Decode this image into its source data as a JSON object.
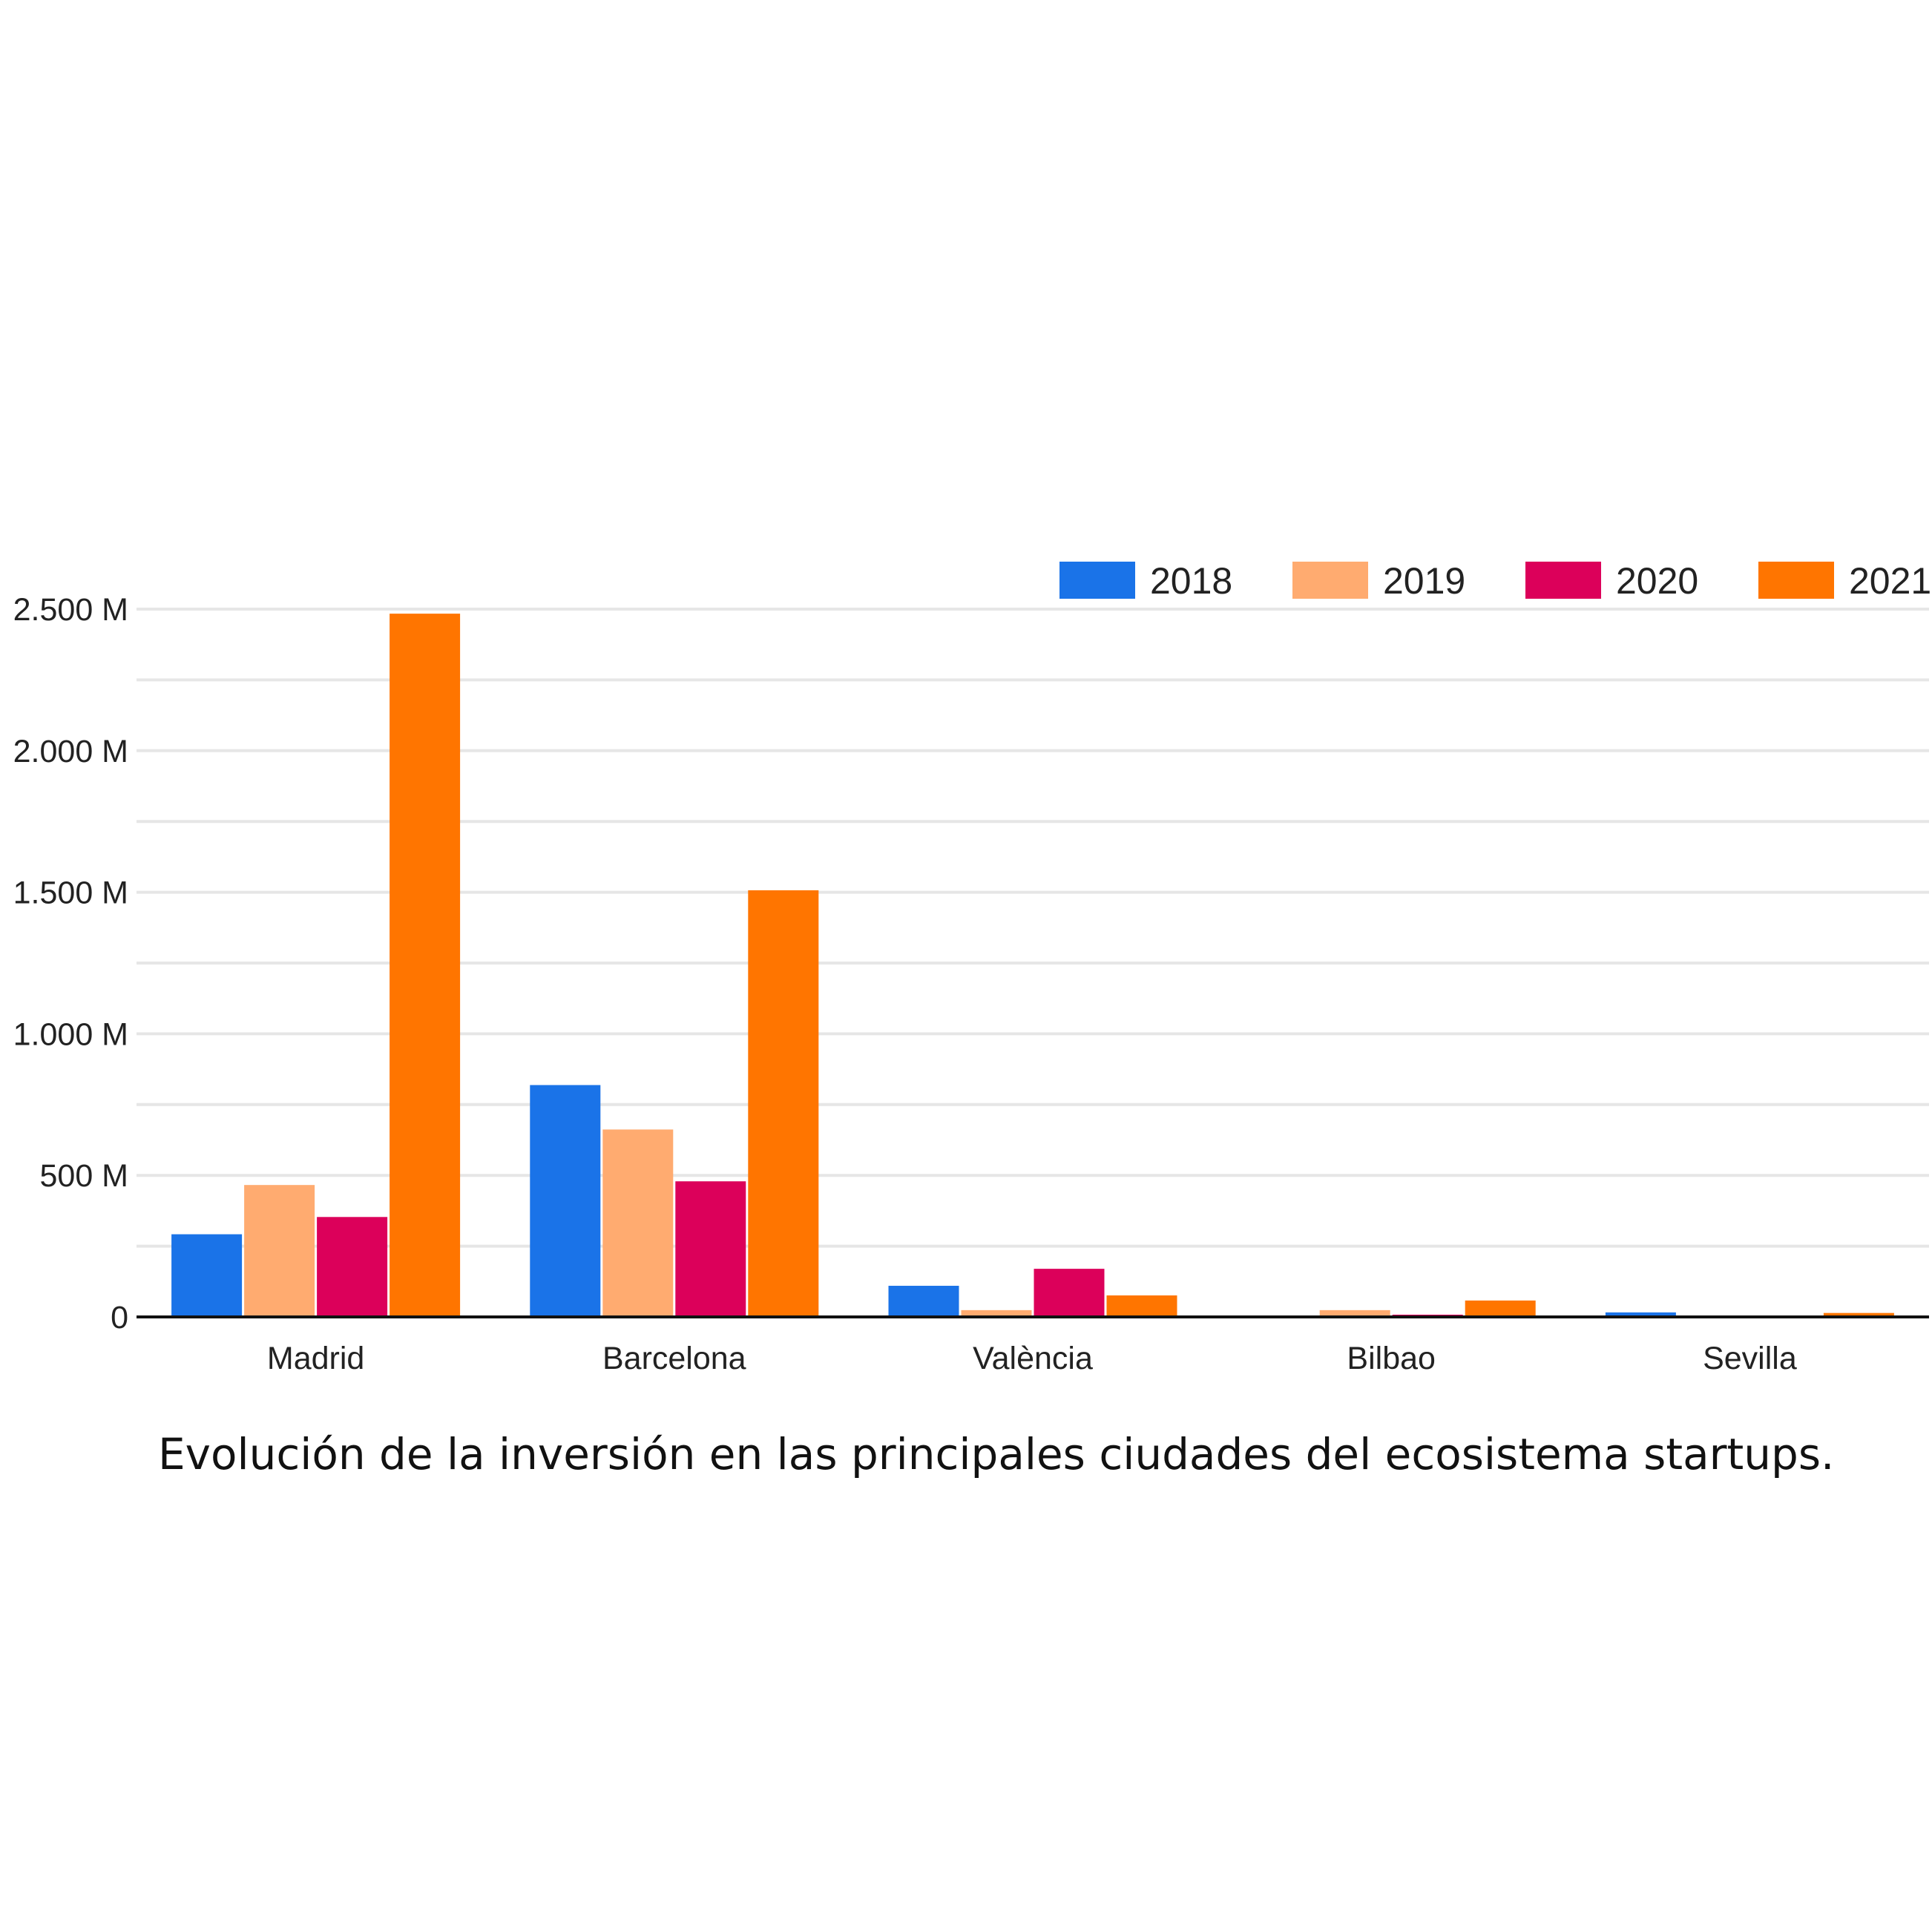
{
  "chart_data": {
    "type": "bar",
    "title": "",
    "caption": "Evolución de la inversión en las principales ciudades del ecosistema startups.",
    "xlabel": "",
    "ylabel": "",
    "categories": [
      "Madrid",
      "Barcelona",
      "València",
      "Bilbao",
      "Sevilla"
    ],
    "series": [
      {
        "name": "2018",
        "color": "#1a73e8",
        "values": [
          292,
          819,
          110,
          0,
          16
        ]
      },
      {
        "name": "2019",
        "color": "#ffab70",
        "values": [
          466,
          662,
          24,
          24,
          1
        ]
      },
      {
        "name": "2020",
        "color": "#dc005a",
        "values": [
          353,
          479,
          170,
          8,
          2
        ]
      },
      {
        "name": "2021",
        "color": "#ff7500",
        "values": [
          2484,
          1507,
          76,
          58,
          14
        ]
      }
    ],
    "ylim": [
      0,
      2500
    ],
    "yticks": [
      0,
      500,
      1000,
      1500,
      2000,
      2500
    ],
    "ytick_labels": [
      "0",
      "500 M",
      "1.000 M",
      "1.500 M",
      "2.000 M",
      "2.500 M"
    ],
    "grid": true,
    "legend": "top-right"
  }
}
